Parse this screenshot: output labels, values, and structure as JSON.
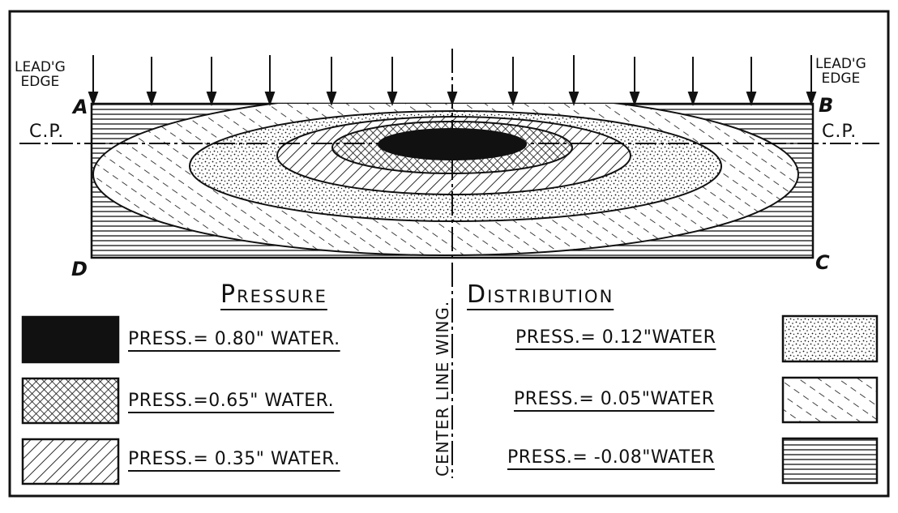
{
  "labels": {
    "leading_edge_left_1": "LEAD'G",
    "leading_edge_left_2": "EDGE",
    "leading_edge_right_1": "LEAD'G",
    "leading_edge_right_2": "EDGE",
    "corner_a": "A",
    "corner_b": "B",
    "corner_c": "C",
    "corner_d": "D",
    "cp_left": "C.P.",
    "cp_right": "C.P.",
    "center_line": "CENTER LINE WING.",
    "heading_left": "Pressure",
    "heading_right": "Distribution"
  },
  "legend": [
    {
      "text": "PRESS.= 0.80\" WATER.",
      "pattern": "solid-black"
    },
    {
      "text": "PRESS.=0.65\" WATER.",
      "pattern": "crosshatch"
    },
    {
      "text": "PRESS.= 0.35\" WATER.",
      "pattern": "diagonal-hatch"
    },
    {
      "text": "PRESS.= 0.12\"WATER",
      "pattern": "dense-stipple"
    },
    {
      "text": "PRESS.= 0.05\"WATER",
      "pattern": "dashed-hatch"
    },
    {
      "text": "PRESS.= -0.08\"WATER",
      "pattern": "horizontal-lines"
    }
  ],
  "colors": {
    "ink": "#111111",
    "paper": "#ffffff"
  }
}
